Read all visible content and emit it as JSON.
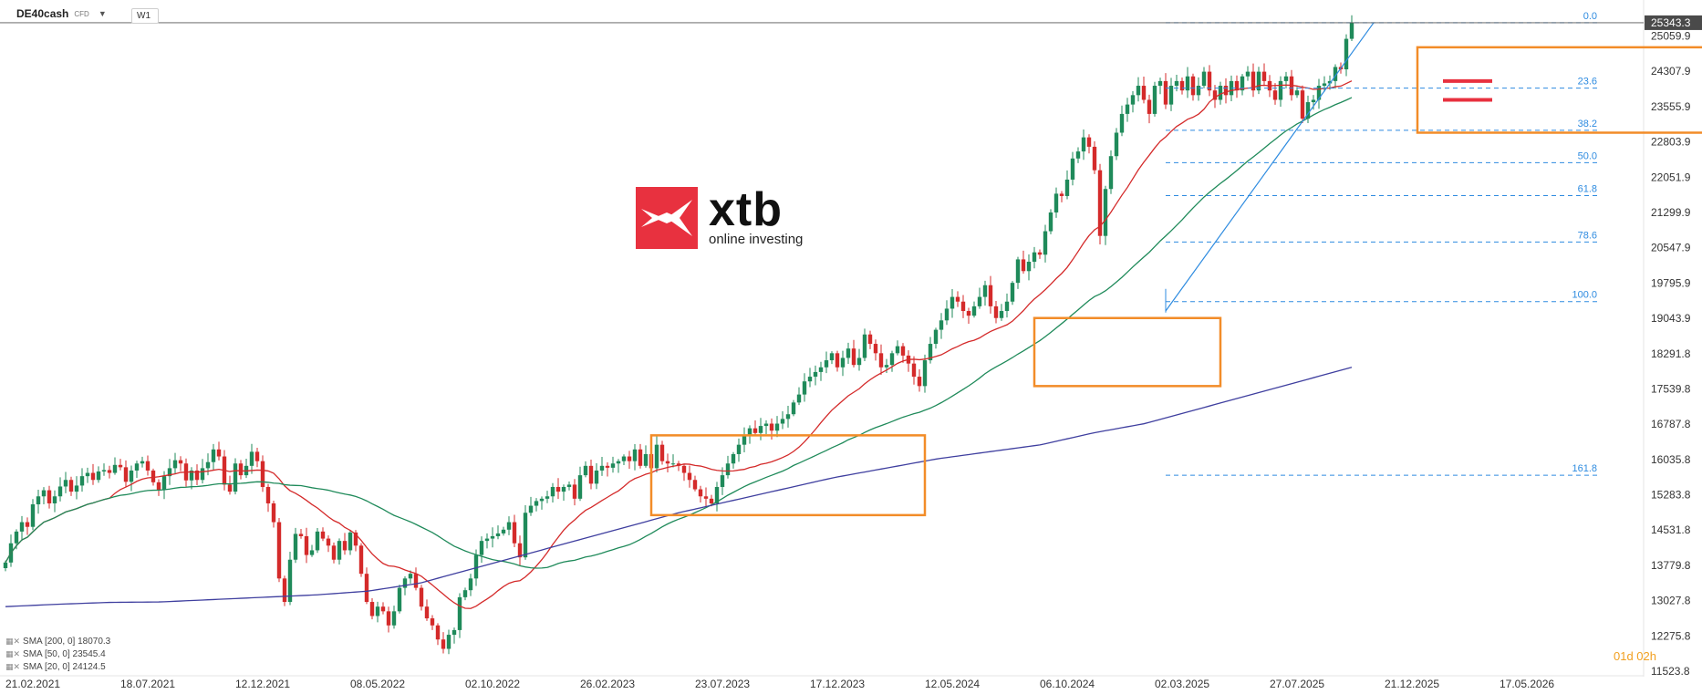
{
  "header": {
    "symbol": "DE40cash",
    "symbol_type": "CFD",
    "timeframe": "W1"
  },
  "legend": [
    {
      "label": "SMA [200, 0]  18070.3",
      "color": "#3f3f9f"
    },
    {
      "label": "SMA [50, 0]  23545.4",
      "color": "#1f8a5a"
    },
    {
      "label": "SMA [20, 0]  24124.5",
      "color": "#d42a2a"
    }
  ],
  "countdown": {
    "days": "01",
    "d": "d",
    "hours": "02",
    "h": "h"
  },
  "logo": {
    "name": "xtb",
    "tagline": "online investing",
    "color": "#e8313f"
  },
  "chart_data": {
    "type": "candlestick",
    "title": "",
    "price_axis": {
      "min": 11523.8,
      "max": 25400,
      "ticks": [
        25059.9,
        24307.9,
        23555.9,
        22803.9,
        22051.9,
        21299.9,
        20547.9,
        19795.9,
        19043.9,
        18291.8,
        17539.8,
        16787.8,
        16035.8,
        15283.8,
        14531.8,
        13779.8,
        13027.8,
        12275.8,
        11523.8
      ]
    },
    "current_price": {
      "label": "25343.3",
      "value": 25343.3
    },
    "x_axis": {
      "labels": [
        "21.02.2021",
        "18.07.2021",
        "12.12.2021",
        "08.05.2022",
        "02.10.2022",
        "26.02.2023",
        "23.07.2023",
        "17.12.2023",
        "12.05.2024",
        "06.10.2024",
        "02.03.2025",
        "27.07.2025",
        "21.12.2025",
        "17.05.2026"
      ],
      "weeks_between_labels": 21,
      "last_candle_week": 250,
      "total_weeks": 290
    },
    "weekly_closes": [
      13840,
      14250,
      14500,
      14700,
      14600,
      15080,
      15250,
      15380,
      15100,
      15250,
      15460,
      15600,
      15350,
      15480,
      15680,
      15750,
      15600,
      15780,
      15810,
      15750,
      15920,
      15870,
      15560,
      15800,
      15950,
      16000,
      15800,
      15550,
      15390,
      15680,
      15850,
      16020,
      15950,
      15590,
      15800,
      15600,
      15850,
      15980,
      16250,
      16100,
      15500,
      15350,
      15950,
      15700,
      15900,
      16200,
      16000,
      15450,
      15100,
      14700,
      13500,
      13000,
      13900,
      14450,
      14400,
      14000,
      14100,
      14500,
      14350,
      14200,
      13900,
      14300,
      14100,
      14480,
      14200,
      13600,
      13000,
      12700,
      12900,
      12800,
      12500,
      12800,
      13300,
      13500,
      13600,
      13300,
      12900,
      12650,
      12500,
      12200,
      12000,
      12300,
      12400,
      13100,
      13250,
      13500,
      14000,
      14300,
      14350,
      14400,
      14460,
      14540,
      14700,
      14250,
      13950,
      14900,
      15050,
      15150,
      15200,
      15250,
      15450,
      15350,
      15450,
      15500,
      15200,
      15700,
      15900,
      15520,
      15800,
      15900,
      15860,
      15950,
      16000,
      16100,
      16000,
      16250,
      15900,
      16150,
      15850,
      16350,
      16000,
      15950,
      15950,
      15900,
      15750,
      15600,
      15400,
      15250,
      15200,
      15100,
      15450,
      15700,
      15950,
      16150,
      16350,
      16550,
      16700,
      16600,
      16750,
      16800,
      16650,
      16800,
      16900,
      17000,
      17250,
      17420,
      17700,
      17800,
      17900,
      18000,
      18150,
      18300,
      18000,
      18200,
      18400,
      18050,
      18200,
      18700,
      18500,
      18300,
      18000,
      18050,
      18300,
      18450,
      18250,
      18080,
      17800,
      17600,
      18150,
      18500,
      18800,
      19000,
      19250,
      19500,
      19400,
      19200,
      19100,
      19300,
      19500,
      19750,
      19300,
      19050,
      19200,
      19400,
      19800,
      20300,
      20050,
      20250,
      20450,
      20400,
      20900,
      21300,
      21700,
      21650,
      22000,
      22450,
      22600,
      22900,
      22700,
      22200,
      20800,
      21800,
      22500,
      23000,
      23400,
      23600,
      23800,
      24000,
      23700,
      23400,
      24000,
      24100,
      23600,
      24000,
      24100,
      23900,
      24200,
      23800,
      24000,
      24300,
      23900,
      23700,
      24000,
      23800,
      24100,
      23900,
      24200,
      24300,
      23900,
      24300,
      24100,
      23900,
      23700,
      24100,
      24200,
      23800,
      23900,
      23300,
      23650,
      23700,
      24000,
      24050,
      24100,
      24400,
      24350,
      25000,
      25343.3
    ],
    "sma": [
      {
        "period": 20,
        "color": "#d42a2a"
      },
      {
        "period": 50,
        "color": "#1f8a5a"
      },
      {
        "period": 200,
        "color": "#3f3f9f",
        "seed": [
          12900,
          12950,
          12990,
          13000,
          13050,
          13100,
          13150,
          13230,
          13400,
          13700,
          14000,
          14300,
          14600,
          14900,
          15150,
          15400,
          15650,
          15850,
          16050,
          16200,
          16350,
          16600,
          16800,
          17100,
          17400,
          17700,
          18000
        ]
      }
    ],
    "fibonacci": {
      "levels": [
        {
          "label": "0.0",
          "price": 25343.3
        },
        {
          "label": "23.6",
          "price": 23950
        },
        {
          "label": "38.2",
          "price": 23050
        },
        {
          "label": "50.0",
          "price": 22360
        },
        {
          "label": "61.8",
          "price": 21660
        },
        {
          "label": "78.6",
          "price": 20670
        },
        {
          "label": "100.0",
          "price": 19400
        },
        {
          "label": "161.8",
          "price": 15700
        }
      ],
      "color": "#2e8be0",
      "anchor_low": {
        "week": 212,
        "price": 19400
      },
      "anchor_high": {
        "week": 250,
        "price": 25343.3
      }
    },
    "range_boxes": [
      {
        "week_start": 118,
        "week_end": 168,
        "price_low": 14850,
        "price_high": 16550
      },
      {
        "week_start": 188,
        "week_end": 222,
        "price_low": 17600,
        "price_high": 19050
      },
      {
        "week_start": 258,
        "week_end": 314,
        "price_low": 23000,
        "price_high": 24820
      }
    ],
    "trend_line": {
      "from_week": 212,
      "from_price": 19200,
      "to_week": 250,
      "to_price": 25343.3
    },
    "resistance_marks": [
      {
        "price": 24100,
        "color": "#e8313f"
      },
      {
        "price": 23700,
        "color": "#e8313f"
      }
    ],
    "colors": {
      "up": "#1f8a5a",
      "down": "#d42a2a",
      "box": "#f28c28",
      "axis_text": "#333333"
    }
  }
}
